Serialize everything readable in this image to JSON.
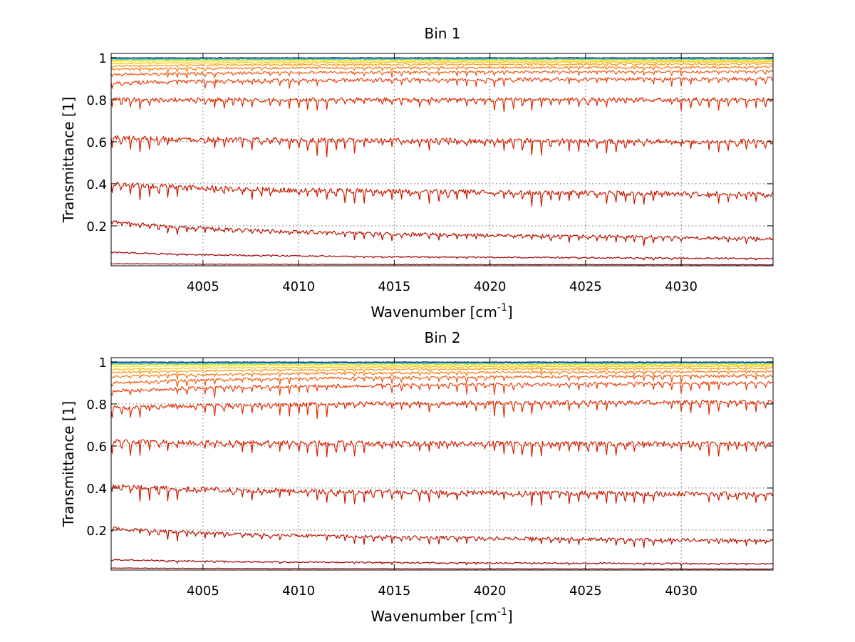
{
  "chart_data": [
    {
      "type": "line",
      "title": "Bin 1",
      "xlabel": "Wavenumber [cm",
      "xlabel_sup": "-1",
      "xlabel_end": "]",
      "ylabel": "Transmittance [1]",
      "xlim": [
        4000.2,
        4034.8
      ],
      "ylim": [
        0.01,
        1.02
      ],
      "xticks": [
        4005,
        4010,
        4015,
        4020,
        4025,
        4030
      ],
      "yticks": [
        0.2,
        0.4,
        0.6,
        0.8,
        1
      ],
      "ytick_labels": [
        "0.2",
        "0.4",
        "0.6",
        "0.8",
        "1"
      ],
      "grid": true,
      "series": [
        {
          "color": "#8B0000",
          "start": 0.02,
          "end": 0.015,
          "depth": 0.002,
          "noise": 0.001
        },
        {
          "color": "#A00000",
          "start": 0.075,
          "end": 0.045,
          "depth": 0.006,
          "noise": 0.003
        },
        {
          "color": "#B81000",
          "start": 0.22,
          "end": 0.14,
          "depth": 0.025,
          "noise": 0.008
        },
        {
          "color": "#C81800",
          "start": 0.4,
          "end": 0.35,
          "depth": 0.045,
          "noise": 0.012
        },
        {
          "color": "#D42000",
          "start": 0.62,
          "end": 0.6,
          "depth": 0.05,
          "noise": 0.012
        },
        {
          "color": "#E02C00",
          "start": 0.8,
          "end": 0.8,
          "depth": 0.04,
          "noise": 0.01
        },
        {
          "color": "#E84010",
          "start": 0.88,
          "end": 0.9,
          "depth": 0.025,
          "noise": 0.008
        },
        {
          "color": "#F05A10",
          "start": 0.92,
          "end": 0.935,
          "depth": 0.015,
          "noise": 0.006
        },
        {
          "color": "#F57A10",
          "start": 0.945,
          "end": 0.955,
          "depth": 0.01,
          "noise": 0.005
        },
        {
          "color": "#F89A10",
          "start": 0.96,
          "end": 0.97,
          "depth": 0.007,
          "noise": 0.004
        },
        {
          "color": "#FBC010",
          "start": 0.972,
          "end": 0.98,
          "depth": 0.004,
          "noise": 0.003
        },
        {
          "color": "#FFE020",
          "start": 0.982,
          "end": 0.986,
          "depth": 0.003,
          "noise": 0.003
        },
        {
          "color": "#C8E040",
          "start": 0.988,
          "end": 0.991,
          "depth": 0.002,
          "noise": 0.003
        },
        {
          "color": "#70D080",
          "start": 0.992,
          "end": 0.994,
          "depth": 0.0015,
          "noise": 0.003
        },
        {
          "color": "#30C0C0",
          "start": 0.995,
          "end": 0.996,
          "depth": 0.001,
          "noise": 0.003
        },
        {
          "color": "#2080C8",
          "start": 0.997,
          "end": 0.998,
          "depth": 0.0008,
          "noise": 0.002
        },
        {
          "color": "#104090",
          "start": 0.999,
          "end": 0.999,
          "depth": 0.0005,
          "noise": 0.002
        }
      ]
    },
    {
      "type": "line",
      "title": "Bin 2",
      "xlabel": "Wavenumber [cm",
      "xlabel_sup": "-1",
      "xlabel_end": "]",
      "ylabel": "Transmittance [1]",
      "xlim": [
        4000.2,
        4034.8
      ],
      "ylim": [
        0.01,
        1.02
      ],
      "xticks": [
        4005,
        4010,
        4015,
        4020,
        4025,
        4030
      ],
      "yticks": [
        0.2,
        0.4,
        0.6,
        0.8,
        1
      ],
      "ytick_labels": [
        "0.2",
        "0.4",
        "0.6",
        "0.8",
        "1"
      ],
      "grid": true,
      "series": [
        {
          "color": "#8B0000",
          "start": 0.02,
          "end": 0.015,
          "depth": 0.002,
          "noise": 0.001
        },
        {
          "color": "#A00000",
          "start": 0.06,
          "end": 0.04,
          "depth": 0.006,
          "noise": 0.003
        },
        {
          "color": "#B81000",
          "start": 0.21,
          "end": 0.15,
          "depth": 0.025,
          "noise": 0.008
        },
        {
          "color": "#C81800",
          "start": 0.41,
          "end": 0.37,
          "depth": 0.045,
          "noise": 0.012
        },
        {
          "color": "#D42000",
          "start": 0.62,
          "end": 0.61,
          "depth": 0.05,
          "noise": 0.012
        },
        {
          "color": "#E02C00",
          "start": 0.78,
          "end": 0.81,
          "depth": 0.045,
          "noise": 0.01
        },
        {
          "color": "#E84010",
          "start": 0.86,
          "end": 0.9,
          "depth": 0.03,
          "noise": 0.008
        },
        {
          "color": "#F05A10",
          "start": 0.9,
          "end": 0.935,
          "depth": 0.02,
          "noise": 0.006
        },
        {
          "color": "#F57A10",
          "start": 0.93,
          "end": 0.955,
          "depth": 0.012,
          "noise": 0.005
        },
        {
          "color": "#F89A10",
          "start": 0.95,
          "end": 0.97,
          "depth": 0.008,
          "noise": 0.004
        },
        {
          "color": "#FBC010",
          "start": 0.965,
          "end": 0.98,
          "depth": 0.005,
          "noise": 0.003
        },
        {
          "color": "#FFE020",
          "start": 0.978,
          "end": 0.986,
          "depth": 0.003,
          "noise": 0.003
        },
        {
          "color": "#C8E040",
          "start": 0.986,
          "end": 0.991,
          "depth": 0.002,
          "noise": 0.003
        },
        {
          "color": "#70D080",
          "start": 0.991,
          "end": 0.994,
          "depth": 0.0015,
          "noise": 0.003
        },
        {
          "color": "#30C0C0",
          "start": 0.994,
          "end": 0.996,
          "depth": 0.001,
          "noise": 0.003
        },
        {
          "color": "#2080C8",
          "start": 0.997,
          "end": 0.998,
          "depth": 0.0008,
          "noise": 0.002
        },
        {
          "color": "#104090",
          "start": 0.999,
          "end": 0.999,
          "depth": 0.0005,
          "noise": 0.002
        }
      ]
    }
  ]
}
